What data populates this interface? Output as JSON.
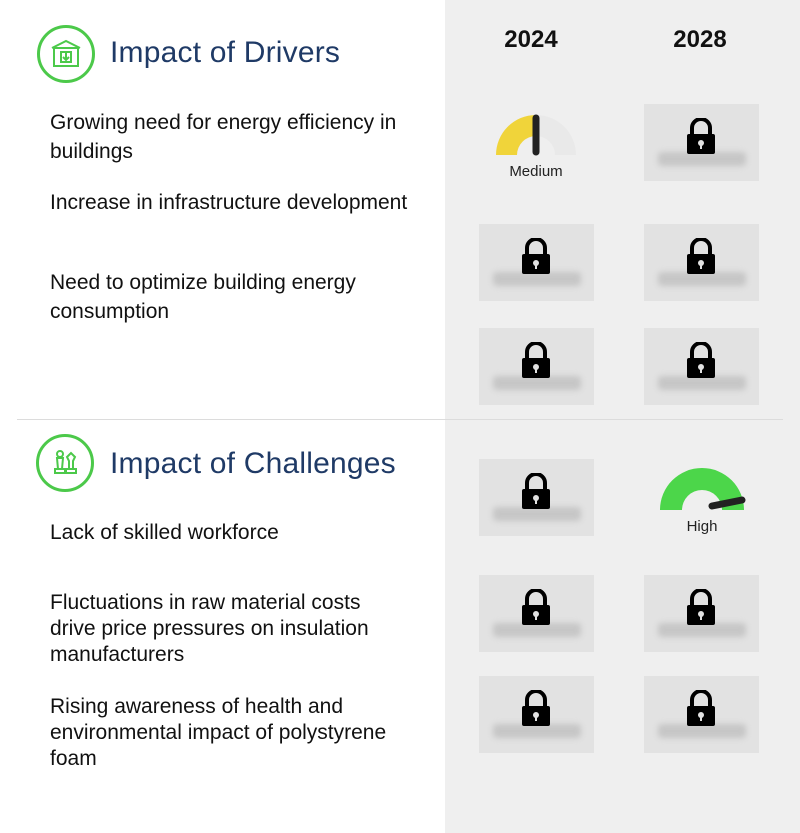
{
  "years": [
    "2024",
    "2028"
  ],
  "drivers": {
    "title": "Impact of Drivers",
    "icon": "building-efficiency-icon",
    "items": [
      "Growing need for energy efficiency in buildings",
      "Increase in infrastructure development",
      "Need to optimize building energy consumption"
    ]
  },
  "challenges": {
    "title": "Impact of Challenges",
    "icon": "chess-pieces-icon",
    "items": [
      "Lack of skilled workforce",
      "Fluctuations in raw material costs drive price pressures on insulation manufacturers",
      "Rising awareness of health and environmental impact of polystyrene foam"
    ]
  },
  "gauges": {
    "driver_2024": {
      "label": "Medium",
      "color": "#f0d43a",
      "level": 0.5
    },
    "challenge_2028": {
      "label": "High",
      "color": "#4cd64a",
      "level": 0.9
    }
  },
  "colors": {
    "accent_green": "#4cc94a",
    "title_blue": "#1f3a66",
    "panel_gray": "#efefef"
  }
}
